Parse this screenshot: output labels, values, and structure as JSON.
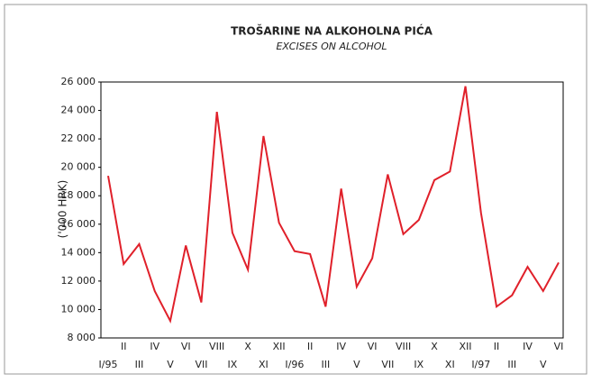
{
  "chart_data": {
    "type": "line",
    "title": "TROŠARINE NA ALKOHOLNA PIĆA",
    "subtitle": "EXCISES ON ALCOHOL",
    "y_label": "('000 HRK)",
    "categories": [
      "I/95",
      "II",
      "III",
      "IV",
      "V",
      "VI",
      "VII",
      "VIII",
      "IX",
      "X",
      "XI",
      "XII",
      "I/96",
      "II",
      "III",
      "IV",
      "V",
      "VI",
      "VII",
      "VIII",
      "IX",
      "X",
      "XI",
      "XII",
      "I/97",
      "II",
      "III",
      "IV",
      "V",
      "VI"
    ],
    "series": [
      {
        "color": "#e0202a",
        "values": [
          19400,
          13200,
          14600,
          11300,
          9200,
          14500,
          10500,
          23900,
          15400,
          12800,
          22200,
          16100,
          14100,
          13900,
          10200,
          18500,
          11600,
          13600,
          19500,
          15300,
          16300,
          19100,
          19700,
          25700,
          16800,
          10200,
          11000,
          13000,
          11300,
          13300
        ]
      }
    ],
    "ylim": [
      8000,
      26000
    ],
    "yticks": [
      {
        "value": 8000,
        "label": "8 000"
      },
      {
        "value": 10000,
        "label": "10 000"
      },
      {
        "value": 12000,
        "label": "12 000"
      },
      {
        "value": 14000,
        "label": "14 000"
      },
      {
        "value": 16000,
        "label": "16 000"
      },
      {
        "value": 18000,
        "label": "18 000"
      },
      {
        "value": 20000,
        "label": "20 000"
      },
      {
        "value": 22000,
        "label": "22 000"
      },
      {
        "value": 24000,
        "label": "24 000"
      },
      {
        "value": 26000,
        "label": "26 000"
      }
    ]
  }
}
